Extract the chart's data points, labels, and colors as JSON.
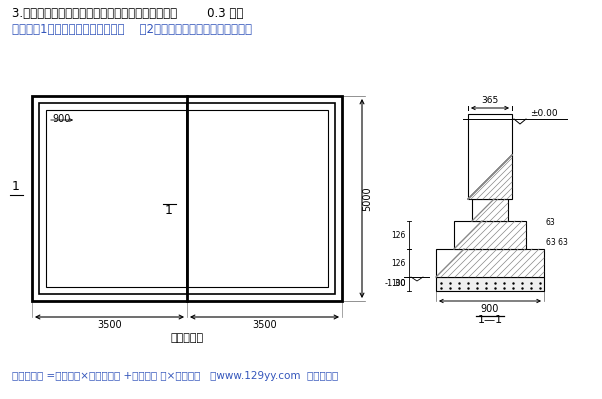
{
  "title": "3.某建筑物基础如下图所示，三类土，室内外高差为        0.3 米。",
  "calc": "计算：（1）人工挖地槽综合基价；    （2）砖基础的体积及其综合基价。",
  "formula": "砖基础体积 =基础顶宽×（设计高度 +折加高度 ）×基础长度   （www.129yy.com  亿亿空间）",
  "plan_label": "基础平面图",
  "section_label": "1—1",
  "bg": "#ffffff",
  "text_color": "#000000",
  "blue_color": "#3355BB"
}
